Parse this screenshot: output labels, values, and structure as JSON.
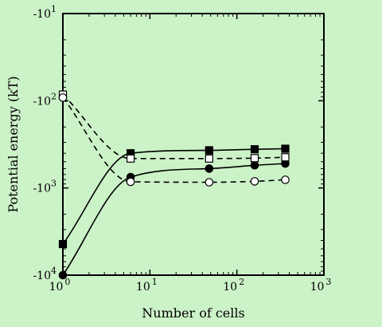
{
  "chart_data": {
    "type": "scatter",
    "title": "",
    "xlabel": "Number of cells",
    "ylabel": "Potential energy (kT)",
    "x_scale": "log",
    "y_scale": "log",
    "xlim": [
      1,
      1000
    ],
    "ylim": [
      -10,
      -10000
    ],
    "grid": false,
    "legend": "none",
    "x_ticks": [
      {
        "value": 1,
        "base": "10",
        "exp": "0"
      },
      {
        "value": 10,
        "base": "10",
        "exp": "1"
      },
      {
        "value": 100,
        "base": "10",
        "exp": "2"
      },
      {
        "value": 1000,
        "base": "10",
        "exp": "3"
      }
    ],
    "y_ticks": [
      {
        "value": -10,
        "base": "-10",
        "exp": "1"
      },
      {
        "value": -100,
        "base": "-10",
        "exp": "2"
      },
      {
        "value": -1000,
        "base": "-10",
        "exp": "3"
      },
      {
        "value": -10000,
        "base": "-10",
        "exp": "4"
      }
    ],
    "series": [
      {
        "marker": "filled-square",
        "line": "solid",
        "x": [
          1,
          6,
          48,
          160,
          360
        ],
        "y": [
          -4400,
          -400,
          -370,
          -360,
          -355
        ]
      },
      {
        "marker": "filled-circle",
        "line": "solid",
        "x": [
          1,
          6,
          48,
          160,
          360
        ],
        "y": [
          -10000,
          -750,
          -600,
          -550,
          -525
        ]
      },
      {
        "marker": "open-square",
        "line": "dashed",
        "x": [
          1,
          6,
          48,
          160,
          360
        ],
        "y": [
          -85,
          -460,
          -460,
          -455,
          -445
        ]
      },
      {
        "marker": "open-circle",
        "line": "dashed",
        "x": [
          1,
          6,
          48,
          160,
          360
        ],
        "y": [
          -92,
          -850,
          -860,
          -840,
          -805
        ]
      }
    ],
    "colors": {
      "background": "#ccf2c8",
      "ink": "#000000",
      "open_fill": "#ffffff"
    }
  }
}
